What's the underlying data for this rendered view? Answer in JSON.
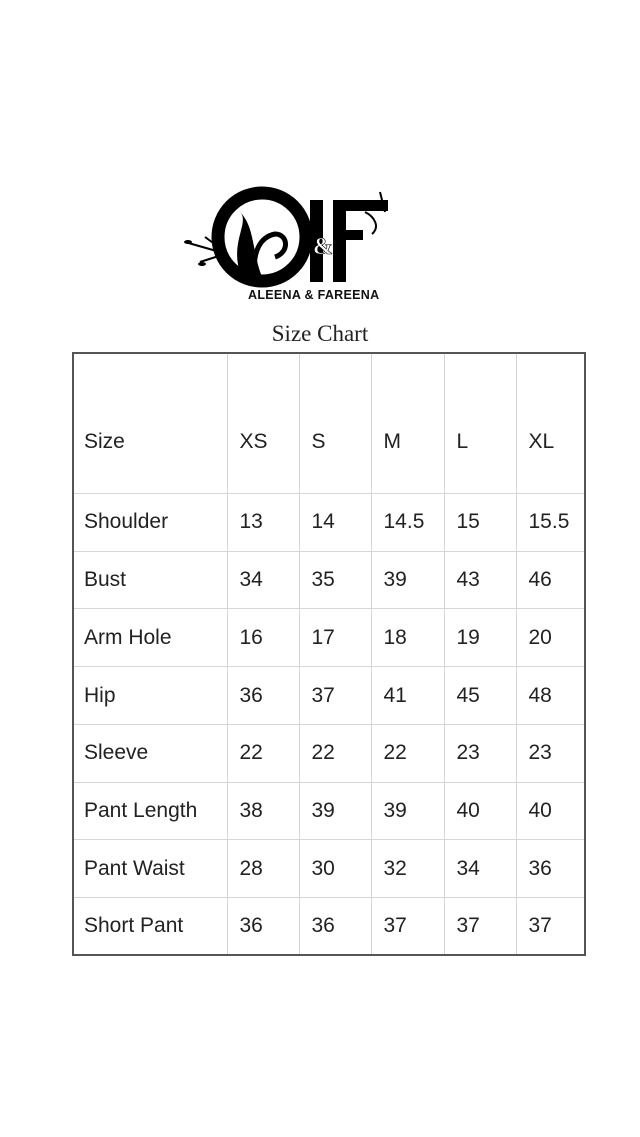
{
  "logo": {
    "monogram": "A&F"
  },
  "brand": "ALEENA & FAREENA",
  "title": "Size Chart",
  "table": {
    "header": [
      "Size",
      "XS",
      "S",
      "M",
      "L",
      "XL"
    ],
    "rows": [
      {
        "label": "Shoulder",
        "values": [
          "13",
          "14",
          "14.5",
          "15",
          "15.5"
        ]
      },
      {
        "label": "Bust",
        "values": [
          "34",
          "35",
          "39",
          "43",
          "46"
        ]
      },
      {
        "label": "Arm Hole",
        "values": [
          "16",
          "17",
          "18",
          "19",
          "20"
        ]
      },
      {
        "label": "Hip",
        "values": [
          "36",
          "37",
          "41",
          "45",
          "48"
        ]
      },
      {
        "label": "Sleeve",
        "values": [
          "22",
          "22",
          "22",
          "23",
          "23"
        ]
      },
      {
        "label": "Pant Length",
        "values": [
          "38",
          "39",
          "39",
          "40",
          "40"
        ]
      },
      {
        "label": "Pant Waist",
        "values": [
          "28",
          "30",
          "32",
          "34",
          "36"
        ]
      },
      {
        "label": "Short Pant",
        "values": [
          "36",
          "36",
          "37",
          "37",
          "37"
        ]
      }
    ]
  }
}
